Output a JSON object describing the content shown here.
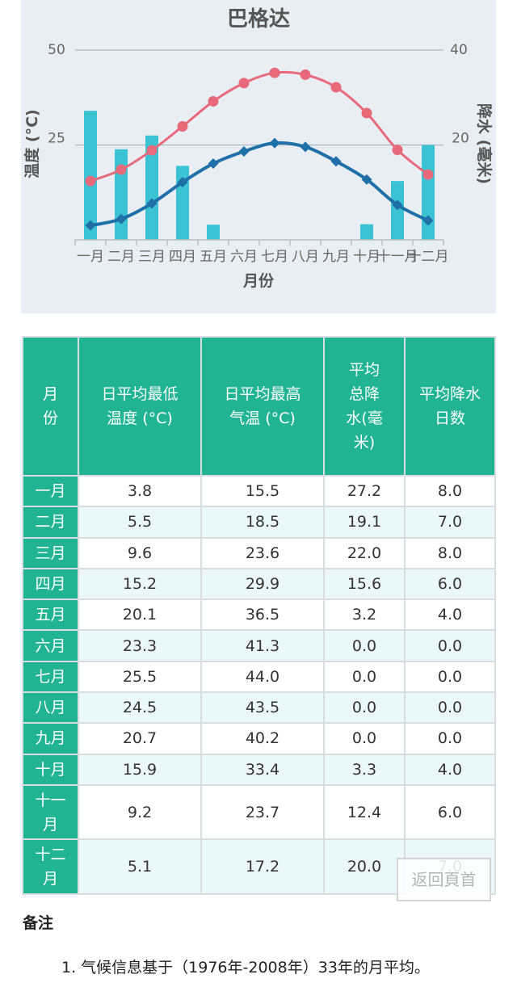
{
  "chart_data": {
    "type": "line",
    "title": "巴格达",
    "xlabel": "月份",
    "ylabel_left": "温度 (°C)",
    "ylabel_right": "降水 (毫米)",
    "categories": [
      "一月",
      "二月",
      "三月",
      "四月",
      "五月",
      "六月",
      "七月",
      "八月",
      "九月",
      "十月",
      "十一月",
      "十二月"
    ],
    "y_left": {
      "range": [
        0,
        50
      ],
      "ticks": [
        "25",
        "50"
      ]
    },
    "y_right": {
      "range": [
        0,
        40
      ],
      "ticks": [
        "20",
        "40"
      ]
    },
    "grid": true,
    "series": [
      {
        "kind": "bar",
        "axis": "right",
        "color": "#3cc3d3",
        "values": [
          27.2,
          19.1,
          22.0,
          15.6,
          3.2,
          0.0,
          0.0,
          0.0,
          0.0,
          3.3,
          12.4,
          20.0
        ]
      },
      {
        "kind": "line",
        "axis": "left",
        "color": "#e8697a",
        "marker": "circle",
        "values": [
          15.5,
          18.5,
          23.6,
          29.9,
          36.5,
          41.3,
          44.0,
          43.5,
          40.2,
          33.4,
          23.7,
          17.2
        ]
      },
      {
        "kind": "line",
        "axis": "left",
        "color": "#1f6fa8",
        "marker": "diamond",
        "values": [
          3.8,
          5.5,
          9.6,
          15.2,
          20.1,
          23.3,
          25.5,
          24.5,
          20.7,
          15.9,
          9.2,
          5.1
        ]
      }
    ]
  },
  "table": {
    "headers": [
      "月份",
      "日平均最低温度 (°C)",
      "日平均最高气温 (°C)",
      "平均总降水(毫米)",
      "平均降水日数"
    ],
    "rows": [
      {
        "month": "一月",
        "low": "3.8",
        "high": "15.5",
        "precip": "27.2",
        "days": "8.0"
      },
      {
        "month": "二月",
        "low": "5.5",
        "high": "18.5",
        "precip": "19.1",
        "days": "7.0"
      },
      {
        "month": "三月",
        "low": "9.6",
        "high": "23.6",
        "precip": "22.0",
        "days": "8.0"
      },
      {
        "month": "四月",
        "low": "15.2",
        "high": "29.9",
        "precip": "15.6",
        "days": "6.0"
      },
      {
        "month": "五月",
        "low": "20.1",
        "high": "36.5",
        "precip": "3.2",
        "days": "4.0"
      },
      {
        "month": "六月",
        "low": "23.3",
        "high": "41.3",
        "precip": "0.0",
        "days": "0.0"
      },
      {
        "month": "七月",
        "low": "25.5",
        "high": "44.0",
        "precip": "0.0",
        "days": "0.0"
      },
      {
        "month": "八月",
        "low": "24.5",
        "high": "43.5",
        "precip": "0.0",
        "days": "0.0"
      },
      {
        "month": "九月",
        "low": "20.7",
        "high": "40.2",
        "precip": "0.0",
        "days": "0.0"
      },
      {
        "month": "十月",
        "low": "15.9",
        "high": "33.4",
        "precip": "3.3",
        "days": "4.0"
      },
      {
        "month": "十一月",
        "low": "9.2",
        "high": "23.7",
        "precip": "12.4",
        "days": "6.0"
      },
      {
        "month": "十二月",
        "low": "5.1",
        "high": "17.2",
        "precip": "20.0",
        "days": "7.0"
      }
    ]
  },
  "notes": {
    "title": "备注",
    "items": [
      "1. 气候信息基于（1976年-2008年）33年的月平均。"
    ]
  },
  "back_home": {
    "label": "返回頁首"
  }
}
